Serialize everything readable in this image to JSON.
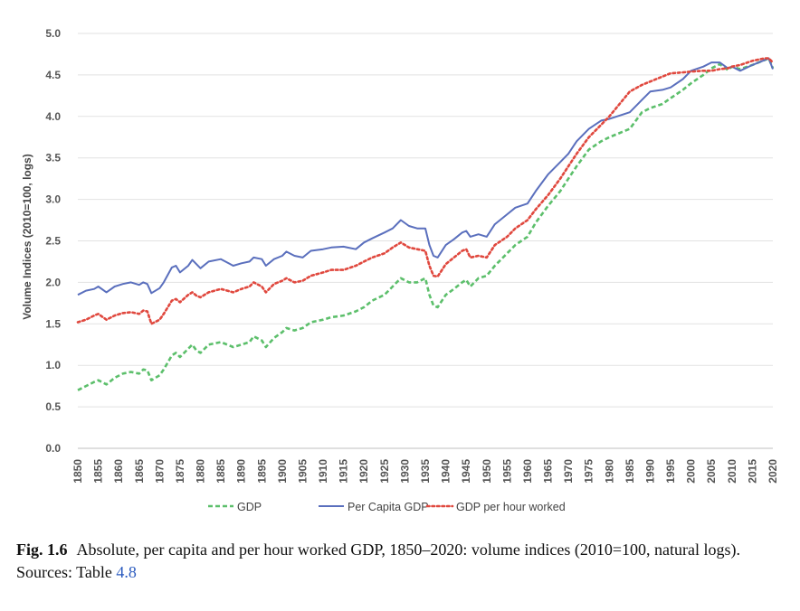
{
  "chart_data": {
    "type": "line",
    "ylabel": "Volume Indices (2010=100, logs)",
    "ylim": [
      0,
      5
    ],
    "yticks": [
      "0.0",
      "0.5",
      "1.0",
      "1.5",
      "2.0",
      "2.5",
      "3.0",
      "3.5",
      "4.0",
      "4.5",
      "5.0"
    ],
    "xlim": [
      1850,
      2020
    ],
    "xticks": [
      1850,
      1855,
      1860,
      1865,
      1870,
      1875,
      1880,
      1885,
      1890,
      1895,
      1900,
      1905,
      1910,
      1915,
      1920,
      1925,
      1930,
      1935,
      1940,
      1945,
      1950,
      1955,
      1960,
      1965,
      1970,
      1975,
      1980,
      1985,
      1990,
      1995,
      2000,
      2005,
      2010,
      2015,
      2020
    ],
    "grid": "horizontal",
    "legend": "bottom",
    "series": [
      {
        "name": "GDP",
        "color": "#5cbf6b",
        "style": "dashed",
        "points": [
          [
            1850,
            0.7
          ],
          [
            1852,
            0.75
          ],
          [
            1854,
            0.8
          ],
          [
            1855,
            0.82
          ],
          [
            1857,
            0.77
          ],
          [
            1859,
            0.85
          ],
          [
            1861,
            0.9
          ],
          [
            1863,
            0.92
          ],
          [
            1865,
            0.9
          ],
          [
            1866,
            0.95
          ],
          [
            1867,
            0.94
          ],
          [
            1868,
            0.82
          ],
          [
            1870,
            0.88
          ],
          [
            1871,
            0.95
          ],
          [
            1873,
            1.12
          ],
          [
            1874,
            1.15
          ],
          [
            1875,
            1.1
          ],
          [
            1877,
            1.2
          ],
          [
            1878,
            1.25
          ],
          [
            1879,
            1.18
          ],
          [
            1880,
            1.15
          ],
          [
            1882,
            1.25
          ],
          [
            1885,
            1.28
          ],
          [
            1888,
            1.22
          ],
          [
            1890,
            1.25
          ],
          [
            1892,
            1.28
          ],
          [
            1893,
            1.35
          ],
          [
            1895,
            1.3
          ],
          [
            1896,
            1.22
          ],
          [
            1898,
            1.33
          ],
          [
            1900,
            1.4
          ],
          [
            1901,
            1.45
          ],
          [
            1903,
            1.42
          ],
          [
            1905,
            1.45
          ],
          [
            1907,
            1.52
          ],
          [
            1910,
            1.55
          ],
          [
            1912,
            1.58
          ],
          [
            1915,
            1.6
          ],
          [
            1918,
            1.65
          ],
          [
            1920,
            1.7
          ],
          [
            1922,
            1.78
          ],
          [
            1925,
            1.85
          ],
          [
            1927,
            1.95
          ],
          [
            1929,
            2.05
          ],
          [
            1931,
            2.0
          ],
          [
            1933,
            2.0
          ],
          [
            1935,
            2.05
          ],
          [
            1936,
            1.85
          ],
          [
            1937,
            1.72
          ],
          [
            1938,
            1.7
          ],
          [
            1940,
            1.85
          ],
          [
            1942,
            1.92
          ],
          [
            1944,
            2.0
          ],
          [
            1945,
            2.03
          ],
          [
            1946,
            1.95
          ],
          [
            1948,
            2.05
          ],
          [
            1950,
            2.08
          ],
          [
            1952,
            2.2
          ],
          [
            1955,
            2.35
          ],
          [
            1957,
            2.45
          ],
          [
            1960,
            2.55
          ],
          [
            1962,
            2.72
          ],
          [
            1965,
            2.92
          ],
          [
            1968,
            3.1
          ],
          [
            1970,
            3.25
          ],
          [
            1972,
            3.4
          ],
          [
            1975,
            3.6
          ],
          [
            1978,
            3.7
          ],
          [
            1980,
            3.75
          ],
          [
            1985,
            3.85
          ],
          [
            1988,
            4.05
          ],
          [
            1990,
            4.1
          ],
          [
            1993,
            4.15
          ],
          [
            1995,
            4.22
          ],
          [
            1998,
            4.32
          ],
          [
            2000,
            4.4
          ],
          [
            2003,
            4.5
          ],
          [
            2005,
            4.58
          ],
          [
            2007,
            4.63
          ],
          [
            2009,
            4.56
          ],
          [
            2010,
            4.6
          ],
          [
            2012,
            4.57
          ],
          [
            2015,
            4.62
          ],
          [
            2018,
            4.68
          ],
          [
            2019,
            4.7
          ],
          [
            2020,
            4.58
          ]
        ]
      },
      {
        "name": "Per Capita GDP",
        "color": "#5a6fbd",
        "style": "solid",
        "points": [
          [
            1850,
            1.85
          ],
          [
            1852,
            1.9
          ],
          [
            1854,
            1.92
          ],
          [
            1855,
            1.95
          ],
          [
            1857,
            1.88
          ],
          [
            1859,
            1.95
          ],
          [
            1861,
            1.98
          ],
          [
            1863,
            2.0
          ],
          [
            1865,
            1.97
          ],
          [
            1866,
            2.0
          ],
          [
            1867,
            1.98
          ],
          [
            1868,
            1.87
          ],
          [
            1870,
            1.93
          ],
          [
            1871,
            2.0
          ],
          [
            1873,
            2.18
          ],
          [
            1874,
            2.2
          ],
          [
            1875,
            2.12
          ],
          [
            1877,
            2.2
          ],
          [
            1878,
            2.27
          ],
          [
            1879,
            2.22
          ],
          [
            1880,
            2.17
          ],
          [
            1882,
            2.25
          ],
          [
            1885,
            2.28
          ],
          [
            1888,
            2.2
          ],
          [
            1890,
            2.23
          ],
          [
            1892,
            2.25
          ],
          [
            1893,
            2.3
          ],
          [
            1895,
            2.28
          ],
          [
            1896,
            2.2
          ],
          [
            1898,
            2.28
          ],
          [
            1900,
            2.32
          ],
          [
            1901,
            2.37
          ],
          [
            1903,
            2.32
          ],
          [
            1905,
            2.3
          ],
          [
            1907,
            2.38
          ],
          [
            1910,
            2.4
          ],
          [
            1912,
            2.42
          ],
          [
            1915,
            2.43
          ],
          [
            1918,
            2.4
          ],
          [
            1920,
            2.48
          ],
          [
            1922,
            2.53
          ],
          [
            1925,
            2.6
          ],
          [
            1927,
            2.65
          ],
          [
            1929,
            2.75
          ],
          [
            1931,
            2.68
          ],
          [
            1933,
            2.65
          ],
          [
            1935,
            2.65
          ],
          [
            1936,
            2.45
          ],
          [
            1937,
            2.32
          ],
          [
            1938,
            2.3
          ],
          [
            1940,
            2.45
          ],
          [
            1942,
            2.52
          ],
          [
            1944,
            2.6
          ],
          [
            1945,
            2.62
          ],
          [
            1946,
            2.55
          ],
          [
            1948,
            2.58
          ],
          [
            1950,
            2.55
          ],
          [
            1952,
            2.7
          ],
          [
            1955,
            2.82
          ],
          [
            1957,
            2.9
          ],
          [
            1960,
            2.95
          ],
          [
            1962,
            3.1
          ],
          [
            1965,
            3.3
          ],
          [
            1968,
            3.45
          ],
          [
            1970,
            3.55
          ],
          [
            1972,
            3.7
          ],
          [
            1975,
            3.85
          ],
          [
            1978,
            3.95
          ],
          [
            1980,
            3.97
          ],
          [
            1985,
            4.05
          ],
          [
            1988,
            4.2
          ],
          [
            1990,
            4.3
          ],
          [
            1993,
            4.32
          ],
          [
            1995,
            4.35
          ],
          [
            1998,
            4.45
          ],
          [
            2000,
            4.55
          ],
          [
            2003,
            4.6
          ],
          [
            2005,
            4.65
          ],
          [
            2007,
            4.65
          ],
          [
            2009,
            4.58
          ],
          [
            2010,
            4.6
          ],
          [
            2012,
            4.55
          ],
          [
            2015,
            4.62
          ],
          [
            2018,
            4.68
          ],
          [
            2019,
            4.7
          ],
          [
            2020,
            4.57
          ]
        ]
      },
      {
        "name": "GDP per hour worked",
        "color": "#e0483e",
        "style": "dotted",
        "points": [
          [
            1850,
            1.52
          ],
          [
            1852,
            1.55
          ],
          [
            1854,
            1.6
          ],
          [
            1855,
            1.62
          ],
          [
            1857,
            1.55
          ],
          [
            1859,
            1.6
          ],
          [
            1861,
            1.63
          ],
          [
            1863,
            1.64
          ],
          [
            1865,
            1.62
          ],
          [
            1866,
            1.66
          ],
          [
            1867,
            1.65
          ],
          [
            1868,
            1.5
          ],
          [
            1870,
            1.55
          ],
          [
            1871,
            1.62
          ],
          [
            1873,
            1.78
          ],
          [
            1874,
            1.8
          ],
          [
            1875,
            1.76
          ],
          [
            1877,
            1.85
          ],
          [
            1878,
            1.88
          ],
          [
            1879,
            1.84
          ],
          [
            1880,
            1.82
          ],
          [
            1882,
            1.88
          ],
          [
            1885,
            1.92
          ],
          [
            1888,
            1.88
          ],
          [
            1890,
            1.92
          ],
          [
            1892,
            1.95
          ],
          [
            1893,
            2.0
          ],
          [
            1895,
            1.95
          ],
          [
            1896,
            1.88
          ],
          [
            1898,
            1.98
          ],
          [
            1900,
            2.02
          ],
          [
            1901,
            2.05
          ],
          [
            1903,
            2.0
          ],
          [
            1905,
            2.02
          ],
          [
            1907,
            2.08
          ],
          [
            1910,
            2.12
          ],
          [
            1912,
            2.15
          ],
          [
            1915,
            2.15
          ],
          [
            1918,
            2.2
          ],
          [
            1920,
            2.25
          ],
          [
            1922,
            2.3
          ],
          [
            1925,
            2.35
          ],
          [
            1927,
            2.42
          ],
          [
            1929,
            2.48
          ],
          [
            1931,
            2.42
          ],
          [
            1933,
            2.4
          ],
          [
            1935,
            2.38
          ],
          [
            1936,
            2.2
          ],
          [
            1937,
            2.08
          ],
          [
            1938,
            2.07
          ],
          [
            1940,
            2.22
          ],
          [
            1942,
            2.3
          ],
          [
            1944,
            2.38
          ],
          [
            1945,
            2.4
          ],
          [
            1946,
            2.3
          ],
          [
            1948,
            2.32
          ],
          [
            1950,
            2.3
          ],
          [
            1952,
            2.45
          ],
          [
            1955,
            2.55
          ],
          [
            1957,
            2.65
          ],
          [
            1960,
            2.75
          ],
          [
            1962,
            2.88
          ],
          [
            1965,
            3.05
          ],
          [
            1968,
            3.25
          ],
          [
            1970,
            3.4
          ],
          [
            1972,
            3.55
          ],
          [
            1975,
            3.75
          ],
          [
            1978,
            3.9
          ],
          [
            1980,
            4.0
          ],
          [
            1985,
            4.3
          ],
          [
            1988,
            4.38
          ],
          [
            1990,
            4.42
          ],
          [
            1993,
            4.48
          ],
          [
            1995,
            4.52
          ],
          [
            1998,
            4.53
          ],
          [
            2000,
            4.54
          ],
          [
            2003,
            4.55
          ],
          [
            2005,
            4.55
          ],
          [
            2007,
            4.57
          ],
          [
            2009,
            4.58
          ],
          [
            2010,
            4.6
          ],
          [
            2012,
            4.62
          ],
          [
            2015,
            4.67
          ],
          [
            2018,
            4.7
          ],
          [
            2019,
            4.7
          ],
          [
            2020,
            4.65
          ]
        ]
      }
    ]
  },
  "caption": {
    "figure_number": "Fig. 1.6",
    "text_before_ref": "Absolute, per capita and per hour worked GDP, 1850–2020: volume indices (2010=100, natural logs). Sources: Table ",
    "ref": "4.8"
  }
}
